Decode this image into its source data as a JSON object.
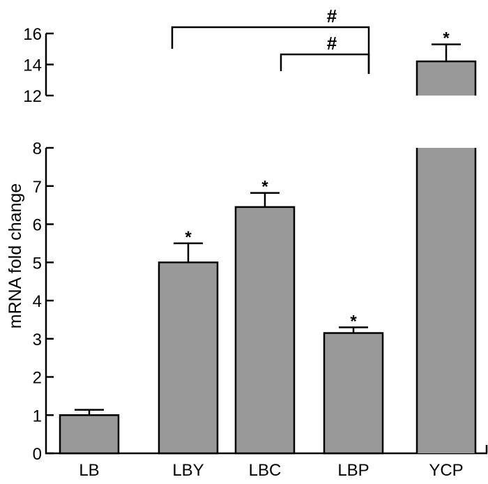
{
  "chart_data": {
    "type": "bar",
    "title": "",
    "xlabel": "",
    "ylabel": "mRNA fold change",
    "categories": [
      "LB",
      "LBY",
      "LBC",
      "LBP",
      "YCP"
    ],
    "values": [
      1.0,
      5.0,
      6.45,
      3.15,
      14.2
    ],
    "error_upper": [
      0.14,
      0.5,
      0.37,
      0.15,
      1.1
    ],
    "significance_markers": [
      "",
      "*",
      "*",
      "*",
      "*"
    ],
    "axis_break": true,
    "ylim_lower": [
      0,
      8
    ],
    "ylim_upper": [
      12,
      16
    ],
    "yticks_lower": [
      "0",
      "1",
      "2",
      "3",
      "4",
      "5",
      "6",
      "7",
      "8"
    ],
    "yticks_upper": [
      "12",
      "14",
      "16"
    ],
    "comparison_brackets": [
      {
        "from": "LBY",
        "to": "LBP",
        "label": "#"
      },
      {
        "from": "LBC",
        "to": "LBP",
        "label": "#"
      }
    ],
    "bar_color": "#999999",
    "grid": false,
    "legend": "none"
  }
}
